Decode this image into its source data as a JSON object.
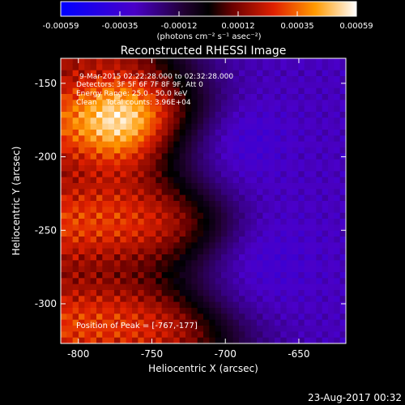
{
  "chart_data": {
    "type": "heatmap",
    "title": "Reconstructed RHESSI Image",
    "xlabel": "Heliocentric X (arcsec)",
    "ylabel": "Heliocentric Y (arcsec)",
    "xlim": [
      -812,
      -618
    ],
    "ylim": [
      -327,
      -133
    ],
    "x_ticks": [
      -800,
      -750,
      -700,
      -650
    ],
    "y_ticks": [
      -150,
      -200,
      -250,
      -300
    ],
    "colorbar": {
      "ticks": [
        "-0.00059",
        "-0.00035",
        "-0.00012",
        "0.00012",
        "0.00035",
        "0.00059"
      ],
      "unit_label": "(photons cm⁻² s⁻¹ asec⁻²)",
      "vmin": -0.00059,
      "vmax": 0.00059
    },
    "annotations": [
      "9-Mar-2015 02:22:28.000 to 02:32:28.000",
      "Detectors: 3F 5F 6F 7F 8F 9F, Att 0",
      "Energy Range: 25.0 - 50.0 keV",
      "Clean    Total counts: 3.96E+04"
    ],
    "peak_label": "Position of Peak = [-767,-177]",
    "peak_position": [
      -767,
      -177
    ],
    "footer": "23-Aug-2017 00:32",
    "grid": false
  }
}
